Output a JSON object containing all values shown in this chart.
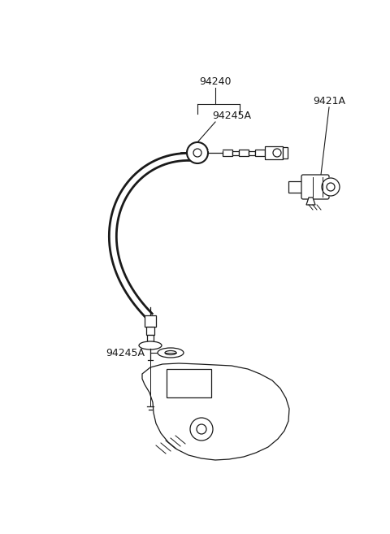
{
  "bg_color": "#ffffff",
  "line_color": "#1a1a1a",
  "label_color": "#1a1a1a",
  "figsize": [
    4.8,
    6.57
  ],
  "dpi": 100,
  "cable_color": "#1a1a1a",
  "label_94240": "94240",
  "label_94245A_top": "94245A",
  "label_9421A": "9421A",
  "label_94245A_bot": "94245A"
}
